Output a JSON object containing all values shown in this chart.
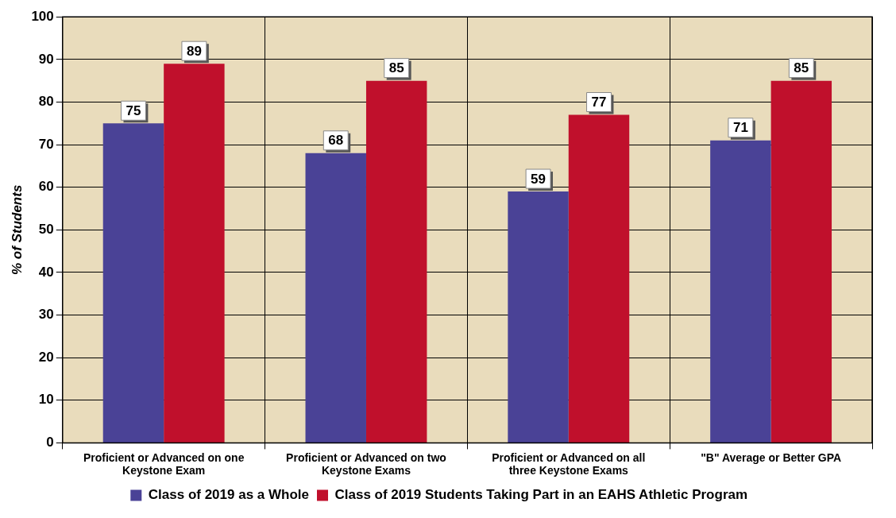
{
  "chart_data": {
    "type": "bar",
    "ylabel": "% of Students",
    "categories": [
      "Proficient or Advanced on one Keystone Exam",
      "Proficient or Advanced on two Keystone Exams",
      "Proficient or Advanced on all three Keystone Exams",
      "\"B\" Average or Better GPA"
    ],
    "series": [
      {
        "name": "Class of 2019 as a Whole",
        "color": "#4a4296",
        "values": [
          75,
          68,
          59,
          71
        ]
      },
      {
        "name": "Class of 2019 Students Taking Part in an EAHS Athletic Program",
        "color": "#c0102c",
        "values": [
          89,
          85,
          77,
          85
        ]
      }
    ],
    "ylim": [
      0,
      100
    ],
    "yticks": [
      0,
      10,
      20,
      30,
      40,
      50,
      60,
      70,
      80,
      90,
      100
    ],
    "grid": true,
    "legend": "bottom",
    "data_labels": true
  }
}
